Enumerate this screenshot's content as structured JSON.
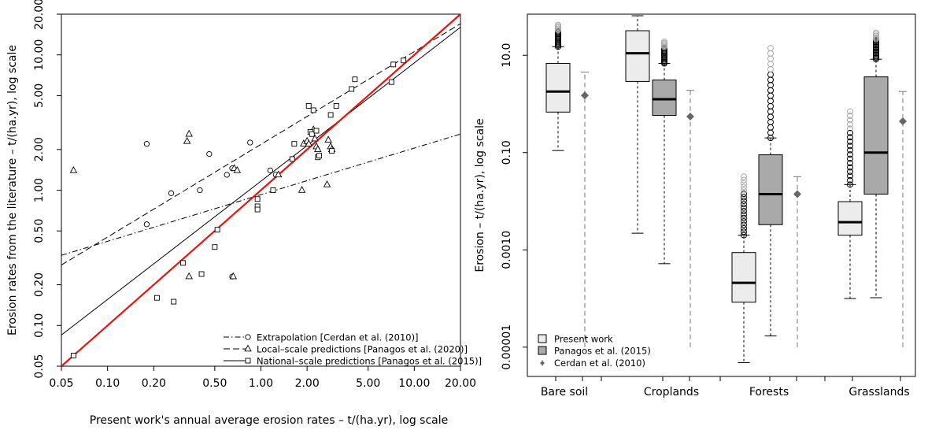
{
  "chart_data": [
    {
      "type": "scatter",
      "xlabel": "Present work's annual average erosion rates – t/(ha.yr), log scale",
      "ylabel": "Erosion rates from the literature – t/(ha.yr), log scale",
      "xscale": "log",
      "yscale": "log",
      "xlim": [
        0.05,
        20
      ],
      "ylim": [
        0.05,
        20
      ],
      "xticks": [
        0.05,
        0.1,
        0.2,
        0.5,
        1,
        2,
        5,
        10,
        20
      ],
      "xtick_labels": [
        "0.05",
        "0.10",
        "0.20",
        "0.50",
        "1.00",
        "2.00",
        "5.00",
        "10.00",
        "20.00"
      ],
      "yticks": [
        0.05,
        0.1,
        0.2,
        0.5,
        1,
        2,
        5,
        10,
        20
      ],
      "ytick_labels": [
        "0.05",
        "0.10",
        "0.20",
        "0.50",
        "1.00",
        "2.00",
        "5.00",
        "10.00",
        "20.00"
      ],
      "legend_position": "bottom-right",
      "series": [
        {
          "name": "Extrapolation [Cerdan et al. (2010)]",
          "marker": "circle",
          "line": "dash-dot",
          "fit": [
            [
              0.05,
              0.33
            ],
            [
              20,
              2.6
            ]
          ],
          "points": [
            [
              0.18,
              2.2
            ],
            [
              0.18,
              0.56
            ],
            [
              0.26,
              0.95
            ],
            [
              0.4,
              1.0
            ],
            [
              0.46,
              1.85
            ],
            [
              0.6,
              1.3
            ],
            [
              0.65,
              1.45
            ],
            [
              0.65,
              0.23
            ],
            [
              0.85,
              2.25
            ],
            [
              1.15,
              1.4
            ],
            [
              1.25,
              1.3
            ]
          ]
        },
        {
          "name": "Local–scale predictions [Panagos et al. (2020)]",
          "marker": "triangle",
          "line": "dashed",
          "fit": [
            [
              0.05,
              0.28
            ],
            [
              20,
              17
            ]
          ],
          "points": [
            [
              0.06,
              1.4
            ],
            [
              0.33,
              2.3
            ],
            [
              0.34,
              2.6
            ],
            [
              0.34,
              0.23
            ],
            [
              0.66,
              0.23
            ],
            [
              0.67,
              1.45
            ],
            [
              0.7,
              1.4
            ],
            [
              1.3,
              1.3
            ],
            [
              1.85,
              1.0
            ],
            [
              1.9,
              2.2
            ],
            [
              2.0,
              2.3
            ],
            [
              2.05,
              2.2
            ],
            [
              2.2,
              2.8
            ],
            [
              2.25,
              2.4
            ],
            [
              2.3,
              2.1
            ],
            [
              2.35,
              2.0
            ],
            [
              2.7,
              1.1
            ],
            [
              2.75,
              2.35
            ],
            [
              2.85,
              2.1
            ],
            [
              2.9,
              2.0
            ]
          ]
        },
        {
          "name": "National–scale predictions [Panagos et al. (2015)]",
          "marker": "square",
          "line": "solid",
          "fit": [
            [
              0.05,
              0.085
            ],
            [
              20,
              16
            ]
          ],
          "points": [
            [
              0.06,
              0.06
            ],
            [
              0.21,
              0.16
            ],
            [
              0.27,
              0.15
            ],
            [
              0.31,
              0.29
            ],
            [
              0.41,
              0.24
            ],
            [
              0.5,
              0.38
            ],
            [
              0.52,
              0.51
            ],
            [
              0.95,
              0.86
            ],
            [
              0.95,
              0.76
            ],
            [
              0.95,
              0.72
            ],
            [
              1.2,
              1.0
            ],
            [
              1.6,
              1.7
            ],
            [
              1.65,
              2.2
            ],
            [
              2.05,
              4.2
            ],
            [
              2.1,
              2.7
            ],
            [
              2.15,
              2.6
            ],
            [
              2.2,
              3.9
            ],
            [
              2.3,
              2.75
            ],
            [
              2.35,
              1.75
            ],
            [
              2.4,
              1.8
            ],
            [
              2.85,
              3.6
            ],
            [
              2.9,
              1.95
            ],
            [
              3.1,
              4.2
            ],
            [
              3.9,
              5.6
            ],
            [
              4.1,
              6.6
            ],
            [
              7.1,
              6.3
            ],
            [
              7.3,
              8.5
            ],
            [
              8.5,
              9.1
            ]
          ]
        },
        {
          "name": "1:1 line",
          "line": "solid",
          "color": "#e8130f",
          "fit": [
            [
              0.045,
              0.045
            ],
            [
              22,
              22
            ]
          ]
        }
      ]
    },
    {
      "type": "boxplot",
      "ylabel": "Erosion – t/(ha.yr), log scale",
      "yscale": "log",
      "ylim": [
        2.5e-06,
        70
      ],
      "yticks": [
        1e-05,
        0.001,
        0.1,
        10
      ],
      "ytick_labels": [
        "0.00001",
        "0.0010",
        "0.10",
        "10.0"
      ],
      "categories": [
        "Bare soil",
        "Croplands",
        "Forests",
        "Grasslands"
      ],
      "legend_position": "bottom-left",
      "series": [
        {
          "name": "Present work",
          "color": "#ececec",
          "boxes": [
            {
              "whisker_low": 0.11,
              "q1": 0.68,
              "median": 1.8,
              "q3": 6.8,
              "whisker_high": 15,
              "outliers_to": 42
            },
            {
              "whisker_low": 0.0022,
              "q1": 2.9,
              "median": 11,
              "q3": 32,
              "whisker_high": 65,
              "outliers_to": 64
            },
            {
              "whisker_low": 4.8e-06,
              "q1": 8.4e-05,
              "median": 0.00021,
              "q3": 0.00088,
              "whisker_high": 0.002,
              "outliers_to": 0.032
            },
            {
              "whisker_low": 0.0001,
              "q1": 0.002,
              "median": 0.0037,
              "q3": 0.0098,
              "whisker_high": 0.022,
              "outliers_to": 0.7
            }
          ]
        },
        {
          "name": "Panagos et al. (2015)",
          "color": "#a9a9a9",
          "boxes": [
            {
              "whisker_low": 0.00052,
              "q1": 0.58,
              "median": 1.25,
              "q3": 3.1,
              "whisker_high": 6.8,
              "outliers_to": 19
            },
            {
              "whisker_low": 1.7e-05,
              "q1": 0.0033,
              "median": 0.014,
              "q3": 0.09,
              "whisker_high": 0.2,
              "outliers_to": 14
            },
            {
              "whisker_low": 0.000104,
              "q1": 0.014,
              "median": 0.1,
              "q3": 3.6,
              "whisker_high": 8.3,
              "outliers_to": 29
            }
          ],
          "categories_present": [
            "Croplands",
            "Forests",
            "Grasslands"
          ]
        },
        {
          "name": "Cerdan et al. (2010)",
          "color": "#666666",
          "points": [
            {
              "category": "Bare soil",
              "value": 1.5,
              "low": 1e-05,
              "high": 4.5
            },
            {
              "category": "Croplands",
              "value": 0.55,
              "low": 1e-05,
              "high": 1.9
            },
            {
              "category": "Forests",
              "value": 0.014,
              "low": 1e-05,
              "high": 0.032
            },
            {
              "category": "Grasslands",
              "value": 0.44,
              "low": 1e-05,
              "high": 1.8
            }
          ]
        }
      ]
    }
  ]
}
